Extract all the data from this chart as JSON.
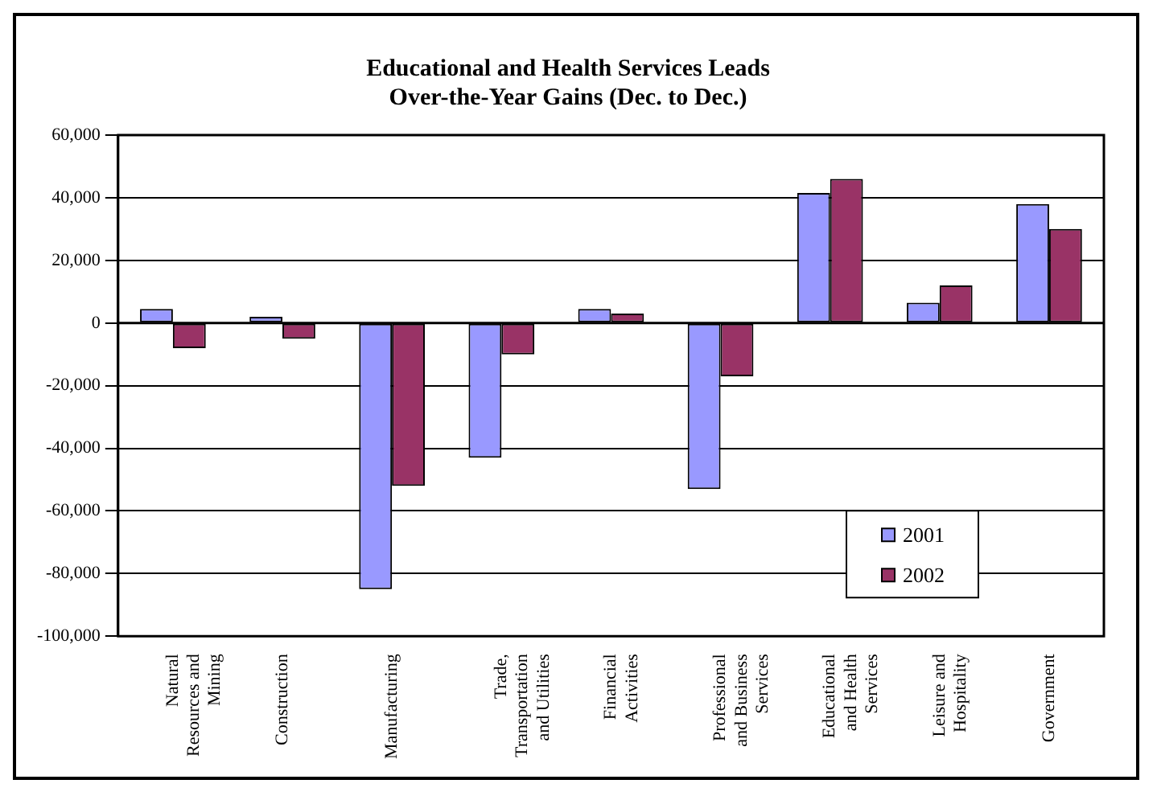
{
  "chart_data": {
    "type": "bar",
    "title": [
      "Educational and Health Services Leads",
      "Over-the-Year Gains (Dec. to Dec.)"
    ],
    "categories": [
      "Natural Resources and Mining",
      "Construction",
      "Manufacturing",
      "Trade, Transportation and Utilities",
      "Financial Activities",
      "Professional and Business Services",
      "Educational and Health Services",
      "Leisure and Hospitality",
      "Government"
    ],
    "series": [
      {
        "name": "2001",
        "color": "#9999ff",
        "values": [
          4500,
          2000,
          -85000,
          -43000,
          4500,
          -53000,
          41500,
          6500,
          38000
        ]
      },
      {
        "name": "2002",
        "color": "#993366",
        "values": [
          -8000,
          -5000,
          -52000,
          -10000,
          3000,
          -17000,
          46000,
          12000,
          30000
        ]
      }
    ],
    "ylim": [
      -100000,
      60000
    ],
    "yticks": [
      {
        "value": -100000,
        "label": "-100,000"
      },
      {
        "value": -80000,
        "label": "-80,000"
      },
      {
        "value": -60000,
        "label": "-60,000"
      },
      {
        "value": -40000,
        "label": "-40,000"
      },
      {
        "value": -20000,
        "label": "-20,000"
      },
      0,
      {
        "value": 20000,
        "label": "20,000"
      },
      {
        "value": 40000,
        "label": "40,000"
      },
      {
        "value": 60000,
        "label": "60,000"
      }
    ],
    "grid": "y",
    "legend": "bottom right"
  }
}
